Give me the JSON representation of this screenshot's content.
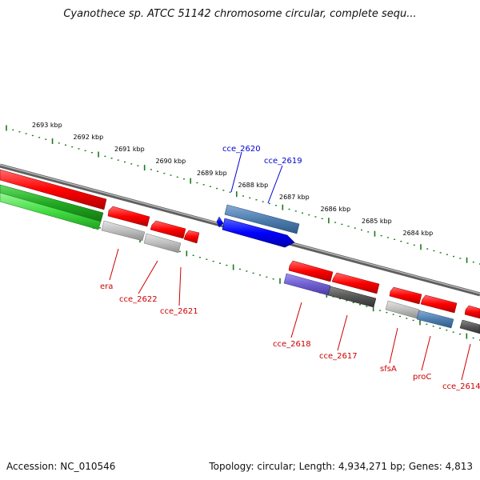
{
  "title": "Cyanothece sp. ATCC 51142 chromosome circular, complete sequ...",
  "footer": {
    "accession": "Accession: NC_010546",
    "summary": "Topology: circular; Length: 4,934,271 bp; Genes: 4,813"
  },
  "ruler_ticks": [
    "2693 kbp",
    "2692 kbp",
    "2691 kbp",
    "2690 kbp",
    "2689 kbp",
    "2688 kbp",
    "2687 kbp",
    "2686 kbp",
    "2685 kbp",
    "2684 kbp"
  ],
  "genes_forward": [
    {
      "name": "cce_2620",
      "color": "#0000cc"
    },
    {
      "name": "cce_2619",
      "color": "#0000cc"
    }
  ],
  "genes_reverse": [
    {
      "name": "era",
      "color": "#cc0000"
    },
    {
      "name": "cce_2622",
      "color": "#cc0000"
    },
    {
      "name": "cce_2621",
      "color": "#cc0000"
    },
    {
      "name": "cce_2618",
      "color": "#cc0000"
    },
    {
      "name": "cce_2617",
      "color": "#cc0000"
    },
    {
      "name": "sfsA",
      "color": "#cc0000"
    },
    {
      "name": "proC",
      "color": "#cc0000"
    },
    {
      "name": "cce_2614",
      "color": "#cc0000"
    }
  ],
  "colors": {
    "cds_red": "#ff0000",
    "cds_blue": "#0000ff",
    "cds_steelblue": "#4f7fb0",
    "cds_purple": "#6f5fcf",
    "cds_gray": "#bdbdbd",
    "cds_darkgray": "#555555",
    "cds_green": "#22aa22",
    "backbone": "#777777",
    "tick": "#1a7a1a"
  }
}
